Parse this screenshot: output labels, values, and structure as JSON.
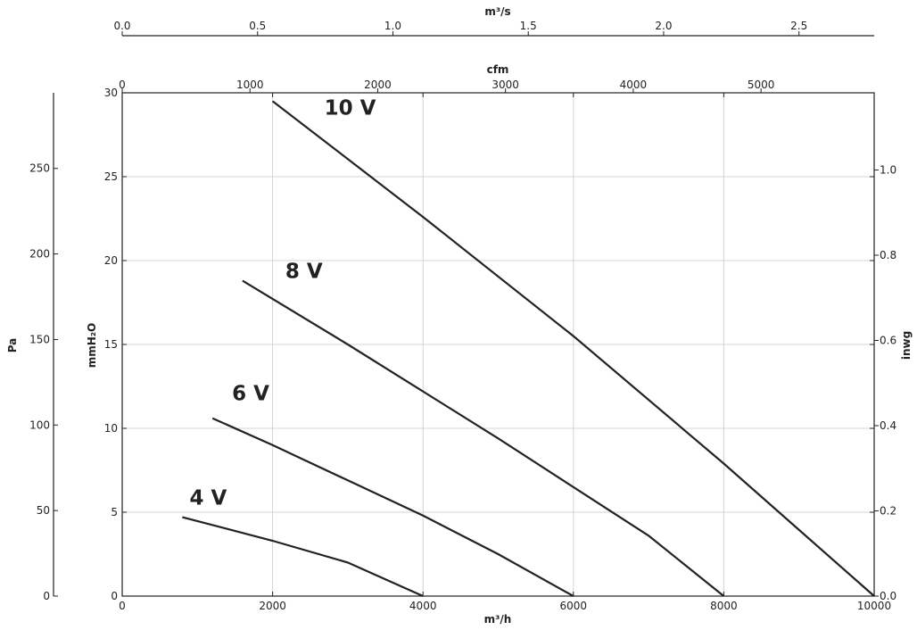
{
  "chart_data": {
    "type": "line",
    "xlabel": "m³/h",
    "ylabel": "mmH₂O",
    "xlim": [
      0,
      10000
    ],
    "ylim": [
      0,
      30
    ],
    "x_ticks": [
      "0",
      "2000",
      "4000",
      "6000",
      "8000",
      "10000"
    ],
    "y_ticks": [
      "0",
      "5",
      "10",
      "15",
      "20",
      "25",
      "30"
    ],
    "grid": true,
    "top_axis_flow_m3s": {
      "label": "m³/s",
      "ticks": [
        "0.0",
        "0.5",
        "1.0",
        "1.5",
        "2.0",
        "2.5"
      ]
    },
    "top_axis_flow_cfm": {
      "label": "cfm",
      "ticks": [
        "0",
        "1000",
        "2000",
        "3000",
        "4000",
        "5000"
      ]
    },
    "left_axis_pressure_pa": {
      "label": "Pa",
      "ticks": [
        "0",
        "50",
        "100",
        "150",
        "200",
        "250"
      ]
    },
    "right_axis_pressure_inwg": {
      "label": "inwg",
      "ticks": [
        "0.0",
        "0.2",
        "0.4",
        "0.6",
        "0.8",
        "1.0"
      ]
    },
    "series": [
      {
        "name": "4 V",
        "x": [
          800,
          2000,
          3000,
          4000
        ],
        "y": [
          4.7,
          3.3,
          2.0,
          0
        ]
      },
      {
        "name": "6 V",
        "x": [
          1200,
          2000,
          3000,
          4000,
          5000,
          6000
        ],
        "y": [
          10.6,
          9.0,
          6.9,
          4.8,
          2.5,
          0
        ]
      },
      {
        "name": "8 V",
        "x": [
          1600,
          3000,
          5000,
          7000,
          8000
        ],
        "y": [
          18.8,
          15.0,
          9.4,
          3.6,
          0
        ]
      },
      {
        "name": "10 V",
        "x": [
          2000,
          4000,
          6000,
          8000,
          10000
        ],
        "y": [
          29.5,
          22.6,
          15.5,
          7.9,
          0
        ]
      }
    ]
  }
}
